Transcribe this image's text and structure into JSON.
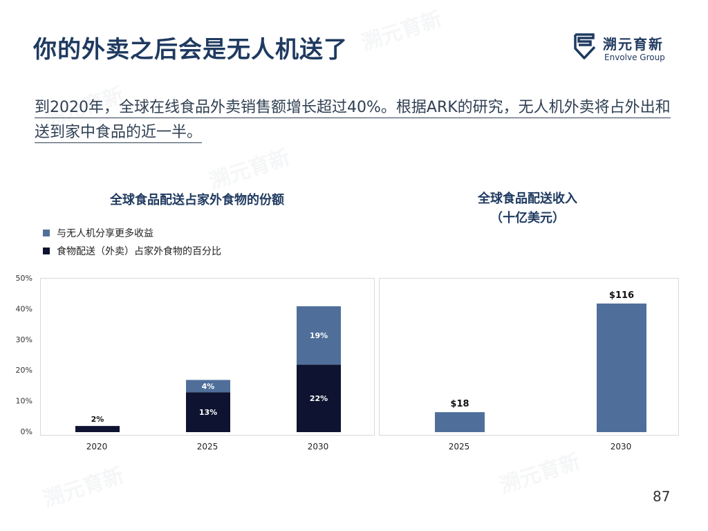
{
  "title": "你的外卖之后会是无人机送了",
  "logo": {
    "cn": "溯元育新",
    "en": "Envolve Group"
  },
  "intro": "到2020年，全球在线食品外卖销售额增长超过40%。根据ARK的研究，无人机外卖将占外出和送到家中食品的近一半。",
  "page_number": "87",
  "watermark": "溯元育新",
  "colors": {
    "dark": "#0d1330",
    "accent": "#4f6f9a",
    "title": "#1f3a60"
  },
  "chart_data": [
    {
      "type": "bar",
      "stacked": true,
      "title": "全球食品配送占家外食物的份额",
      "categories": [
        "2020",
        "2025",
        "2030"
      ],
      "series": [
        {
          "name": "食物配送（外卖）占家外食物的百分比",
          "values": [
            2,
            13,
            22
          ],
          "labels": [
            "2%",
            "13%",
            "22%"
          ]
        },
        {
          "name": "与无人机分享更多收益",
          "values": [
            0,
            4,
            19
          ],
          "labels": [
            "",
            "4%",
            "19%"
          ]
        }
      ],
      "ylim": [
        0,
        50
      ],
      "yticks": [
        "0%",
        "10%",
        "20%",
        "30%",
        "40%",
        "50%"
      ],
      "legend": "top-left",
      "grid": false
    },
    {
      "type": "bar",
      "title_line1": "全球食品配送收入",
      "title_line2": "（十亿美元）",
      "categories": [
        "2025",
        "2030"
      ],
      "values": [
        18,
        116
      ],
      "labels": [
        "$18",
        "$116"
      ],
      "grid": false
    }
  ]
}
